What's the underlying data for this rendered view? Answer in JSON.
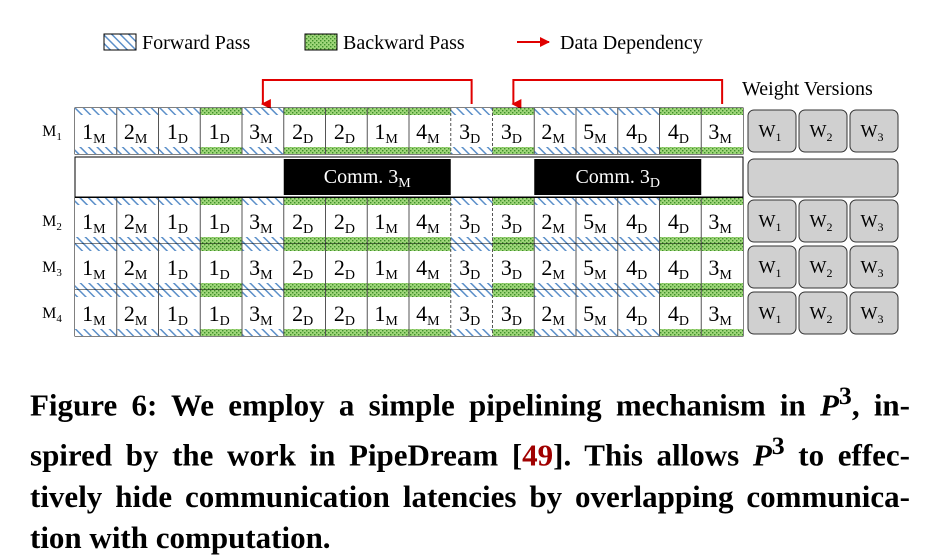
{
  "legend": {
    "forward": "Forward Pass",
    "backward": "Backward Pass",
    "dependency": "Data Dependency",
    "weight_versions": "Weight Versions"
  },
  "rows": [
    {
      "label": "M",
      "sub": "1"
    },
    {
      "label": "M",
      "sub": "2"
    },
    {
      "label": "M",
      "sub": "3"
    },
    {
      "label": "M",
      "sub": "4"
    }
  ],
  "cells": [
    {
      "n": "1",
      "s": "M",
      "type": "forward"
    },
    {
      "n": "2",
      "s": "M",
      "type": "forward"
    },
    {
      "n": "1",
      "s": "D",
      "type": "forward"
    },
    {
      "n": "1",
      "s": "D",
      "type": "backward"
    },
    {
      "n": "3",
      "s": "M",
      "type": "forward"
    },
    {
      "n": "2",
      "s": "D",
      "type": "backward"
    },
    {
      "n": "2",
      "s": "D",
      "type": "backward"
    },
    {
      "n": "1",
      "s": "M",
      "type": "backward"
    },
    {
      "n": "4",
      "s": "M",
      "type": "backward"
    },
    {
      "n": "3",
      "s": "D",
      "type": "forward"
    },
    {
      "n": "3",
      "s": "D",
      "type": "backward"
    },
    {
      "n": "2",
      "s": "M",
      "type": "forward"
    },
    {
      "n": "5",
      "s": "M",
      "type": "forward"
    },
    {
      "n": "4",
      "s": "D",
      "type": "forward"
    },
    {
      "n": "4",
      "s": "D",
      "type": "backward"
    },
    {
      "n": "3",
      "s": "M",
      "type": "backward"
    }
  ],
  "comm": [
    {
      "text": "Comm. 3",
      "sub": "M"
    },
    {
      "text": "Comm. 3",
      "sub": "D"
    }
  ],
  "weights": [
    {
      "label": "W",
      "sub": "1"
    },
    {
      "label": "W",
      "sub": "2"
    },
    {
      "label": "W",
      "sub": "3"
    }
  ],
  "caption": {
    "prefix": "Figure 6: We employ a simple pipelining mechanism in ",
    "p": "P",
    "sup": "3",
    "mid1": ", in-spired by the work in PipeDream [",
    "cite": "49",
    "mid2": "]. This allows ",
    "mid3": " to effec-tively hide communication latencies by overlapping communica-tion with computation."
  },
  "colors": {
    "forward_stripe": "#5b8fc9",
    "backward_fill": "#9fd67a",
    "backward_dot": "#3f8f2a",
    "arrow": "#e00000",
    "comm_bg": "#000000",
    "weight_bg": "#d0d0d0"
  }
}
